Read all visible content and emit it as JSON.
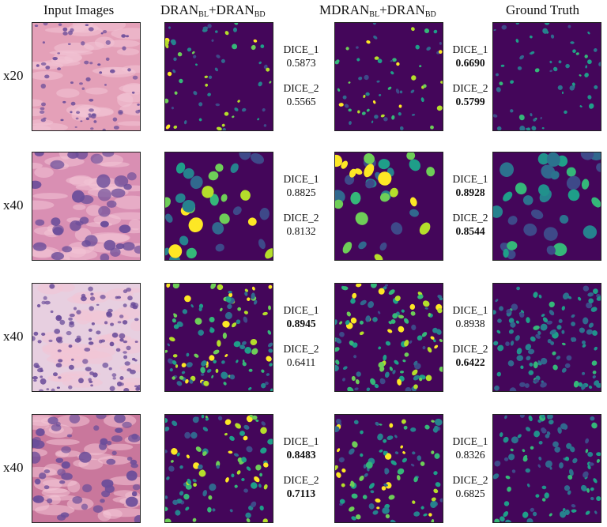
{
  "headers": {
    "input": "Input Images",
    "model1_main1": "DRAN",
    "model1_sub1": "BL",
    "model1_plus": "+DRAN",
    "model1_sub2": "BD",
    "model2_main1": "MDRAN",
    "model2_sub1": "BL",
    "model2_plus": "+DRAN",
    "model2_sub2": "BD",
    "gt": "Ground Truth"
  },
  "rows": [
    {
      "magnification": "x20",
      "m1": {
        "d1_label": "DICE_1",
        "d1": "0.5873",
        "d1_bold": false,
        "d2_label": "DICE_2",
        "d2": "0.5565",
        "d2_bold": false
      },
      "m2": {
        "d1_label": "DICE_1",
        "d1": "0.6690",
        "d1_bold": true,
        "d2_label": "DICE_2",
        "d2": "0.5799",
        "d2_bold": true
      }
    },
    {
      "magnification": "x40",
      "m1": {
        "d1_label": "DICE_1",
        "d1": "0.8825",
        "d1_bold": false,
        "d2_label": "DICE_2",
        "d2": "0.8132",
        "d2_bold": false
      },
      "m2": {
        "d1_label": "DICE_1",
        "d1": "0.8928",
        "d1_bold": true,
        "d2_label": "DICE_2",
        "d2": "0.8544",
        "d2_bold": true
      }
    },
    {
      "magnification": "x40",
      "m1": {
        "d1_label": "DICE_1",
        "d1": "0.8945",
        "d1_bold": true,
        "d2_label": "DICE_2",
        "d2": "0.6411",
        "d2_bold": false
      },
      "m2": {
        "d1_label": "DICE_1",
        "d1": "0.8938",
        "d1_bold": false,
        "d2_label": "DICE_2",
        "d2": "0.6422",
        "d2_bold": true
      }
    },
    {
      "magnification": "x40",
      "m1": {
        "d1_label": "DICE_1",
        "d1": "0.8483",
        "d1_bold": true,
        "d2_label": "DICE_2",
        "d2": "0.7113",
        "d2_bold": true
      },
      "m2": {
        "d1_label": "DICE_1",
        "d1": "0.8326",
        "d1_bold": false,
        "d2_label": "DICE_2",
        "d2": "0.6825",
        "d2_bold": false
      }
    }
  ],
  "colors": {
    "mask_background": "#44065a",
    "mask_palette": [
      "#fde725",
      "#b5de2b",
      "#6ece58",
      "#35b779",
      "#1f9e89",
      "#26828e",
      "#31688e",
      "#3e4989"
    ],
    "gt_palette": [
      "#31688e",
      "#2c728e",
      "#26828e",
      "#21918c",
      "#1f9e89",
      "#3e4989",
      "#35b779"
    ],
    "tissue_background": "#e9a3bf",
    "nuclei": "#6b4d9a"
  }
}
